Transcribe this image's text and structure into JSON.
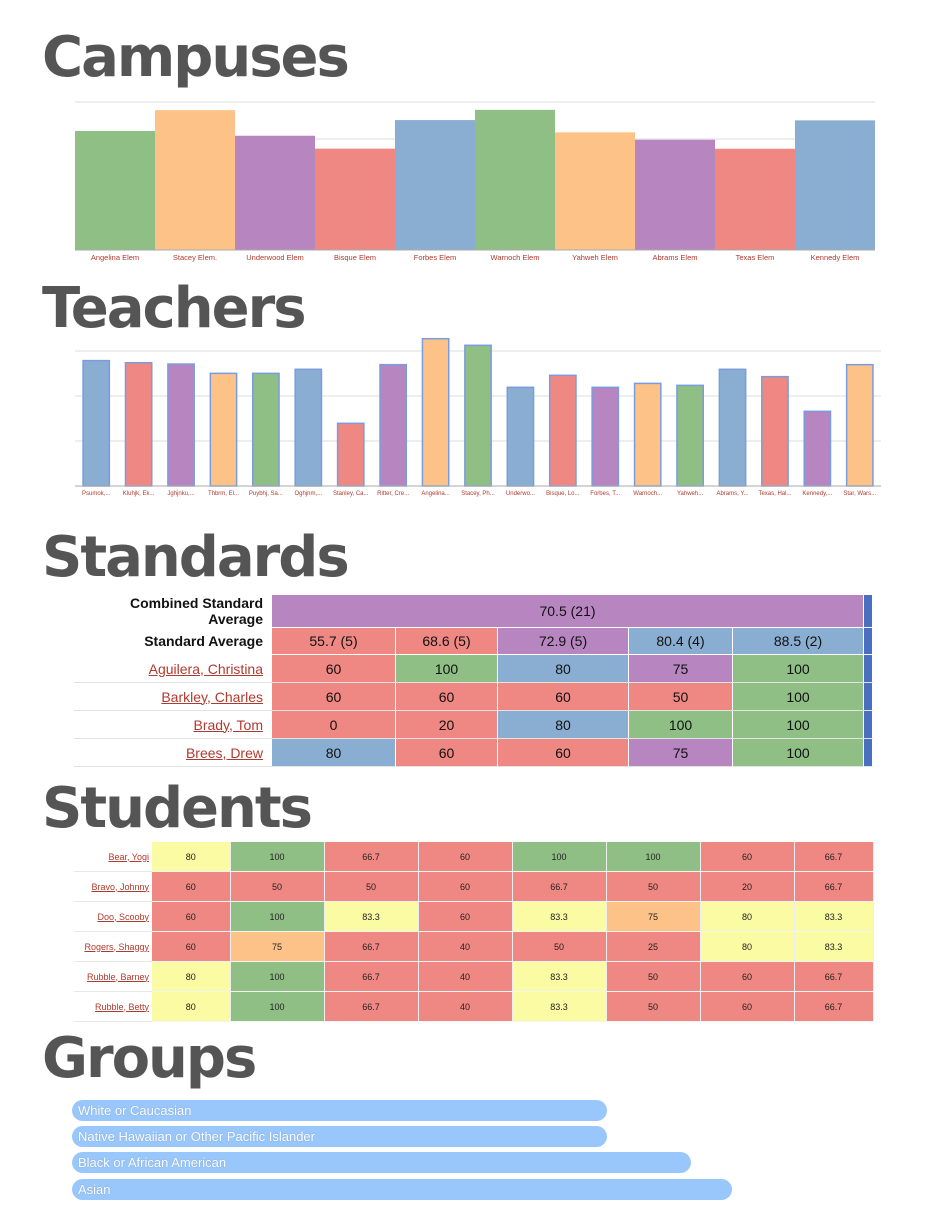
{
  "sections": {
    "campuses": "Campuses",
    "teachers": "Teachers",
    "standards": "Standards",
    "students": "Students",
    "groups": "Groups"
  },
  "colors": {
    "green": "#8fbf85",
    "orange": "#fdc287",
    "purple": "#b785bf",
    "red": "#ef8783",
    "blue": "#8aaed2",
    "yellow": "#fbfba3",
    "stroke_blue": "#7b9cdc",
    "label_red": "#b03a2e"
  },
  "chart_data": [
    {
      "type": "bar",
      "title": "",
      "categories": [
        "Angelina Elem",
        "Stacey Elem.",
        "Underwood Elem",
        "Bisque Elem",
        "Forbes Elem",
        "Warnoch Elem",
        "Yahweh Elem",
        "Abrams Elem",
        "Texas Elem",
        "Kennedy Elem"
      ],
      "values": [
        80.4,
        94.5,
        77.2,
        68.5,
        87.8,
        94.7,
        79.5,
        74.5,
        68.4,
        87.6
      ],
      "colors": [
        "green",
        "orange",
        "purple",
        "red",
        "blue",
        "green",
        "orange",
        "purple",
        "red",
        "blue"
      ],
      "ylim": [
        0,
        100
      ],
      "grid": true
    },
    {
      "type": "bar",
      "title": "",
      "categories": [
        "Psumok,...",
        "Kluhjk, Ek...",
        "Jghjnku,...",
        "Thbrm, El...",
        "Puybhj, Sa...",
        "Oghjnm,...",
        "Stanley, Ca...",
        "Ritter, Cre...",
        "Angelina...",
        "Stacey, Ph...",
        "Underwo...",
        "Bisque, Lo...",
        "Forbes, T...",
        "Warnoch...",
        "Yahweh...",
        "Abrams, Y...",
        "Texas, Hal...",
        "Kennedy,...",
        "Star, Wars..."
      ],
      "values": [
        83.6,
        82.2,
        81.3,
        75.1,
        75.1,
        77.8,
        41.8,
        80.9,
        98.2,
        93.8,
        65.8,
        73.8,
        65.8,
        68.4,
        67.1,
        77.8,
        72.9,
        49.8,
        80.9
      ],
      "colors": [
        "blue",
        "red",
        "purple",
        "orange",
        "green",
        "blue",
        "red",
        "purple",
        "orange",
        "green",
        "blue",
        "red",
        "purple",
        "orange",
        "green",
        "blue",
        "red",
        "purple",
        "orange"
      ],
      "ylim": [
        0,
        100
      ],
      "grid": true
    }
  ],
  "standards_table": {
    "combined_label": "Combined Standard Average",
    "combined_value": "70.5 (21)",
    "average_label": "Standard Average",
    "averages": [
      {
        "value": "55.7 (5)",
        "color": "red"
      },
      {
        "value": "68.6 (5)",
        "color": "red"
      },
      {
        "value": "72.9 (5)",
        "color": "purple"
      },
      {
        "value": "80.4 (4)",
        "color": "blue"
      },
      {
        "value": "88.5 (2)",
        "color": "blue"
      }
    ],
    "rows": [
      {
        "name": "Aguilera, Christina",
        "cells": [
          {
            "v": "60",
            "c": "red"
          },
          {
            "v": "100",
            "c": "green"
          },
          {
            "v": "80",
            "c": "blue"
          },
          {
            "v": "75",
            "c": "purple"
          },
          {
            "v": "100",
            "c": "green"
          }
        ]
      },
      {
        "name": "Barkley, Charles",
        "cells": [
          {
            "v": "60",
            "c": "red"
          },
          {
            "v": "60",
            "c": "red"
          },
          {
            "v": "60",
            "c": "red"
          },
          {
            "v": "50",
            "c": "red"
          },
          {
            "v": "100",
            "c": "green"
          }
        ]
      },
      {
        "name": "Brady, Tom",
        "cells": [
          {
            "v": "0",
            "c": "red"
          },
          {
            "v": "20",
            "c": "red"
          },
          {
            "v": "80",
            "c": "blue"
          },
          {
            "v": "100",
            "c": "green"
          },
          {
            "v": "100",
            "c": "green"
          }
        ]
      },
      {
        "name": "Brees, Drew",
        "cells": [
          {
            "v": "80",
            "c": "blue"
          },
          {
            "v": "60",
            "c": "red"
          },
          {
            "v": "60",
            "c": "red"
          },
          {
            "v": "75",
            "c": "purple"
          },
          {
            "v": "100",
            "c": "green"
          }
        ]
      }
    ]
  },
  "students_table": {
    "rows": [
      {
        "name": "Bear, Yogi",
        "cells": [
          {
            "v": "80",
            "c": "yellow"
          },
          {
            "v": "100",
            "c": "green"
          },
          {
            "v": "66.7",
            "c": "red"
          },
          {
            "v": "60",
            "c": "red"
          },
          {
            "v": "100",
            "c": "green"
          },
          {
            "v": "100",
            "c": "green"
          },
          {
            "v": "60",
            "c": "red"
          },
          {
            "v": "66.7",
            "c": "red"
          }
        ]
      },
      {
        "name": "Bravo, Johnny",
        "cells": [
          {
            "v": "60",
            "c": "red"
          },
          {
            "v": "50",
            "c": "red"
          },
          {
            "v": "50",
            "c": "red"
          },
          {
            "v": "60",
            "c": "red"
          },
          {
            "v": "66.7",
            "c": "red"
          },
          {
            "v": "50",
            "c": "red"
          },
          {
            "v": "20",
            "c": "red"
          },
          {
            "v": "66.7",
            "c": "red"
          }
        ]
      },
      {
        "name": "Doo, Scooby",
        "cells": [
          {
            "v": "60",
            "c": "red"
          },
          {
            "v": "100",
            "c": "green"
          },
          {
            "v": "83.3",
            "c": "yellow"
          },
          {
            "v": "60",
            "c": "red"
          },
          {
            "v": "83.3",
            "c": "yellow"
          },
          {
            "v": "75",
            "c": "orange"
          },
          {
            "v": "80",
            "c": "yellow"
          },
          {
            "v": "83.3",
            "c": "yellow"
          }
        ]
      },
      {
        "name": "Rogers, Shaggy",
        "cells": [
          {
            "v": "60",
            "c": "red"
          },
          {
            "v": "75",
            "c": "orange"
          },
          {
            "v": "66.7",
            "c": "red"
          },
          {
            "v": "40",
            "c": "red"
          },
          {
            "v": "50",
            "c": "red"
          },
          {
            "v": "25",
            "c": "red"
          },
          {
            "v": "80",
            "c": "yellow"
          },
          {
            "v": "83.3",
            "c": "yellow"
          }
        ]
      },
      {
        "name": "Rubble, Barney",
        "cells": [
          {
            "v": "80",
            "c": "yellow"
          },
          {
            "v": "100",
            "c": "green"
          },
          {
            "v": "66.7",
            "c": "red"
          },
          {
            "v": "40",
            "c": "red"
          },
          {
            "v": "83.3",
            "c": "yellow"
          },
          {
            "v": "50",
            "c": "red"
          },
          {
            "v": "60",
            "c": "red"
          },
          {
            "v": "66.7",
            "c": "red"
          }
        ]
      },
      {
        "name": "Rubble, Betty",
        "cells": [
          {
            "v": "80",
            "c": "yellow"
          },
          {
            "v": "100",
            "c": "green"
          },
          {
            "v": "66.7",
            "c": "red"
          },
          {
            "v": "40",
            "c": "red"
          },
          {
            "v": "83.3",
            "c": "yellow"
          },
          {
            "v": "50",
            "c": "red"
          },
          {
            "v": "60",
            "c": "red"
          },
          {
            "v": "66.7",
            "c": "red"
          }
        ]
      }
    ]
  },
  "groups": [
    {
      "label": "White or Caucasian",
      "share": 0.64
    },
    {
      "label": "Native Hawaiian or Other Pacific Islander",
      "share": 0.64
    },
    {
      "label": "Black or African American",
      "share": 0.74
    },
    {
      "label": "Asian",
      "share": 0.79
    }
  ]
}
